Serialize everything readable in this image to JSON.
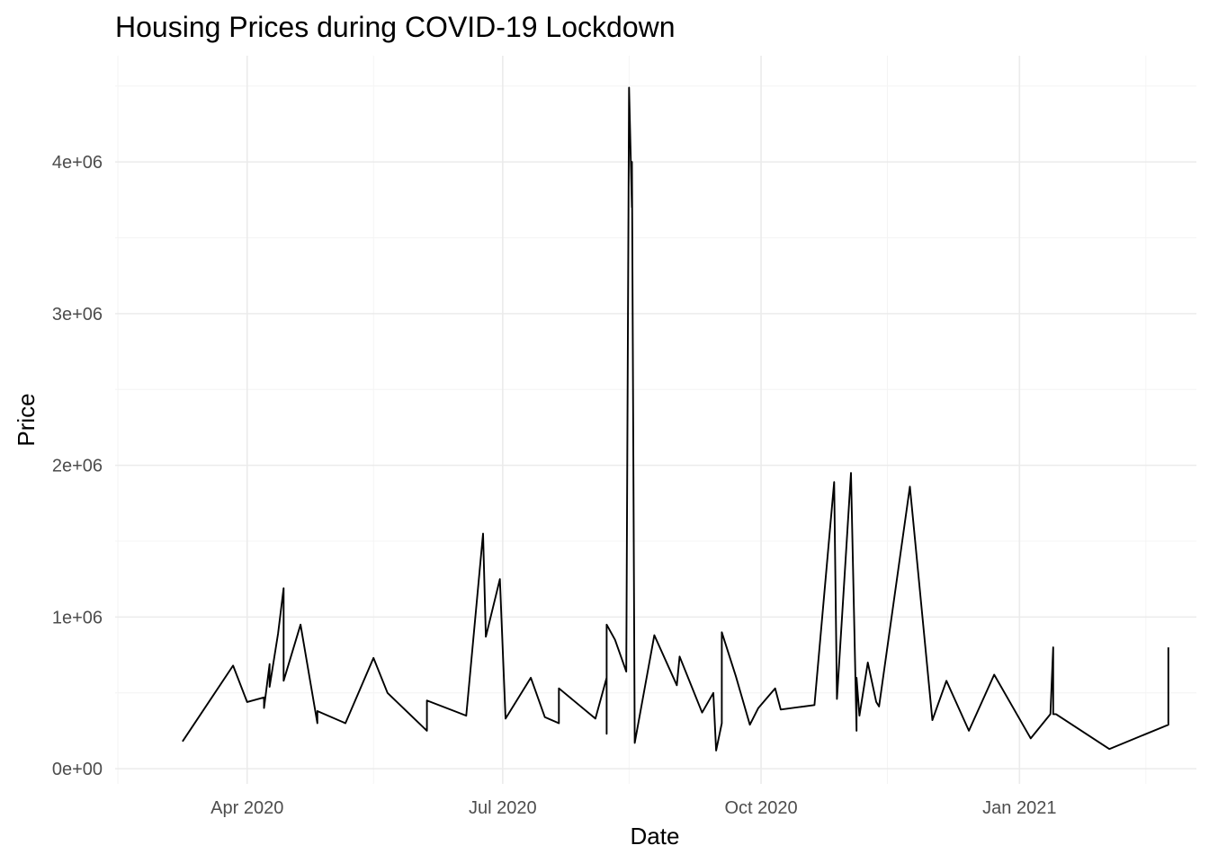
{
  "chart_data": {
    "type": "line",
    "title": "Housing Prices during COVID-19 Lockdown",
    "xlabel": "Date",
    "ylabel": "Price",
    "xlim": [
      "2020-02-14",
      "2021-03-05"
    ],
    "ylim": [
      -100000,
      4700000
    ],
    "x_ticks": [
      {
        "label": "Apr 2020",
        "date": "2020-04-01"
      },
      {
        "label": "Jul 2020",
        "date": "2020-07-01"
      },
      {
        "label": "Oct 2020",
        "date": "2020-10-01"
      },
      {
        "label": "Jan 2021",
        "date": "2021-01-01"
      }
    ],
    "x_minor_dates": [
      "2020-02-15",
      "2020-05-16",
      "2020-08-15",
      "2020-11-15",
      "2021-02-15"
    ],
    "y_ticks": [
      {
        "label": "0e+00",
        "value": 0
      },
      {
        "label": "1e+06",
        "value": 1000000
      },
      {
        "label": "2e+06",
        "value": 2000000
      },
      {
        "label": "3e+06",
        "value": 3000000
      },
      {
        "label": "4e+06",
        "value": 4000000
      }
    ],
    "y_minor_values": [
      500000,
      1500000,
      2500000,
      3500000,
      4500000
    ],
    "grid": true,
    "legend": "none",
    "line_color": "#000000",
    "series": [
      {
        "x": [
          "2020-03-09",
          "2020-03-27",
          "2020-04-01",
          "2020-04-07",
          "2020-04-07",
          "2020-04-09",
          "2020-04-09",
          "2020-04-12",
          "2020-04-14",
          "2020-04-14",
          "2020-04-20",
          "2020-04-26",
          "2020-04-26",
          "2020-05-06",
          "2020-05-16",
          "2020-05-21",
          "2020-06-04",
          "2020-06-04",
          "2020-06-18",
          "2020-06-24",
          "2020-06-25",
          "2020-06-30",
          "2020-07-02",
          "2020-07-11",
          "2020-07-16",
          "2020-07-21",
          "2020-07-21",
          "2020-08-03",
          "2020-08-07",
          "2020-08-07",
          "2020-08-07",
          "2020-08-10",
          "2020-08-14",
          "2020-08-15",
          "2020-08-16",
          "2020-08-16",
          "2020-08-17",
          "2020-08-24",
          "2020-09-01",
          "2020-09-02",
          "2020-09-10",
          "2020-09-14",
          "2020-09-15",
          "2020-09-17",
          "2020-09-17",
          "2020-09-22",
          "2020-09-27",
          "2020-09-30",
          "2020-10-06",
          "2020-10-08",
          "2020-10-20",
          "2020-10-27",
          "2020-10-28",
          "2020-11-02",
          "2020-11-04",
          "2020-11-04",
          "2020-11-05",
          "2020-11-08",
          "2020-11-11",
          "2020-11-12",
          "2020-11-23",
          "2020-12-01",
          "2020-12-06",
          "2020-12-14",
          "2020-12-23",
          "2021-01-05",
          "2021-01-12",
          "2021-01-13",
          "2021-01-13",
          "2021-01-14",
          "2021-02-02",
          "2021-02-23",
          "2021-02-23"
        ],
        "values": [
          180000,
          680000,
          440000,
          470000,
          400000,
          690000,
          540000,
          890000,
          1190000,
          580000,
          950000,
          300000,
          380000,
          300000,
          730000,
          500000,
          250000,
          450000,
          350000,
          1550000,
          870000,
          1250000,
          330000,
          600000,
          340000,
          300000,
          530000,
          330000,
          600000,
          230000,
          950000,
          850000,
          640000,
          4490000,
          3700000,
          4000000,
          170000,
          880000,
          550000,
          740000,
          370000,
          500000,
          120000,
          300000,
          900000,
          610000,
          290000,
          400000,
          530000,
          390000,
          420000,
          1890000,
          460000,
          1950000,
          250000,
          600000,
          350000,
          700000,
          440000,
          410000,
          1860000,
          320000,
          580000,
          250000,
          620000,
          200000,
          360000,
          800000,
          360000,
          360000,
          130000,
          290000,
          800000
        ]
      }
    ]
  }
}
